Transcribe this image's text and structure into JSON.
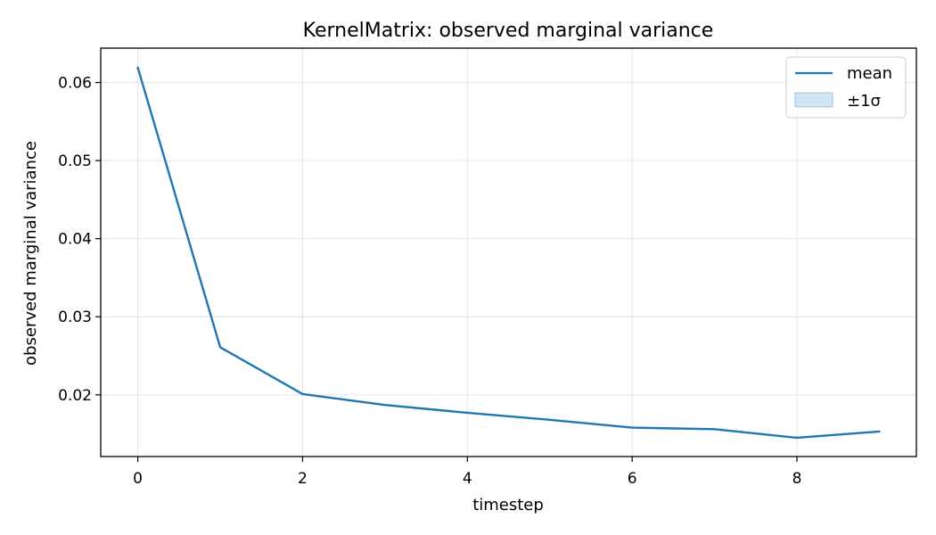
{
  "chart_data": {
    "type": "line",
    "title": "KernelMatrix: observed marginal variance",
    "xlabel": "timestep",
    "ylabel": "observed marginal variance",
    "x": [
      0,
      1,
      2,
      3,
      4,
      5,
      6,
      7,
      8,
      9
    ],
    "series": [
      {
        "name": "mean",
        "color": "#1f77b4",
        "values": [
          0.0619,
          0.0261,
          0.0201,
          0.0187,
          0.0177,
          0.0168,
          0.0158,
          0.0156,
          0.0145,
          0.0153
        ]
      }
    ],
    "band": {
      "name": "±1σ",
      "color": "#1f77b4",
      "opacity": 0.2
    },
    "xlim": [
      -0.45,
      9.45
    ],
    "ylim": [
      0.0121,
      0.0644
    ],
    "xticks": [
      0,
      2,
      4,
      6,
      8
    ],
    "xtick_labels": [
      "0",
      "2",
      "4",
      "6",
      "8"
    ],
    "yticks": [
      0.02,
      0.03,
      0.04,
      0.05,
      0.06
    ],
    "ytick_labels": [
      "0.02",
      "0.03",
      "0.04",
      "0.05",
      "0.06"
    ],
    "grid": true,
    "legend_position": "top-right"
  }
}
